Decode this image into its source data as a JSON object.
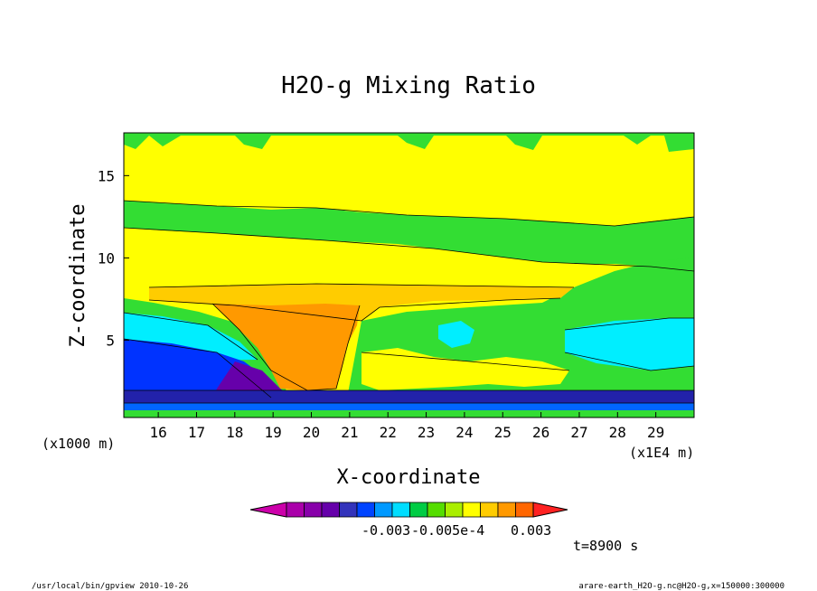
{
  "chart_data": {
    "type": "contour",
    "title": "H2O-g Mixing Ratio",
    "xlabel": "X-coordinate",
    "ylabel": "Z-coordinate",
    "x_unit_label": "(x1E4 m)",
    "y_unit_label": "(x1000 m)",
    "x_ticks": [
      16,
      17,
      18,
      19,
      20,
      21,
      22,
      23,
      24,
      25,
      26,
      27,
      28,
      29
    ],
    "y_ticks": [
      5,
      10,
      15
    ],
    "xlim": [
      15.1,
      30.0
    ],
    "ylim": [
      0.3,
      17.6
    ],
    "colorbar": {
      "colors": [
        "#cc00aa",
        "#aa00aa",
        "#8800aa",
        "#6600aa",
        "#3333bb",
        "#0044ff",
        "#0099ff",
        "#00ddff",
        "#00cc44",
        "#55dd00",
        "#aaee00",
        "#ffff00",
        "#ffcc00",
        "#ff9900",
        "#ff6600",
        "#ff2222"
      ],
      "labels": [
        "-0.003",
        "-0.005e-4",
        "0.003"
      ]
    },
    "time_label": "t=8900 s",
    "footer_left": "/usr/local/bin/gpview  2010-10-26",
    "footer_right": "arare-earth_H2O-g.nc@H2O-g,x=150000:300000"
  }
}
